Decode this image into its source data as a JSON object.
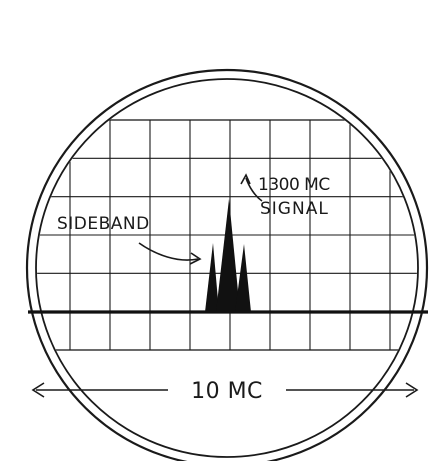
{
  "labels": {
    "carrier": "1300 MC",
    "carrier_line2": "SIGNAL",
    "sideband": "SIDEBAND",
    "span": "10 MC"
  },
  "display": {
    "grid_columns": 10,
    "grid_rows": 6
  },
  "colors": {
    "ink": "#1a1a1a",
    "background": "#ffffff"
  }
}
